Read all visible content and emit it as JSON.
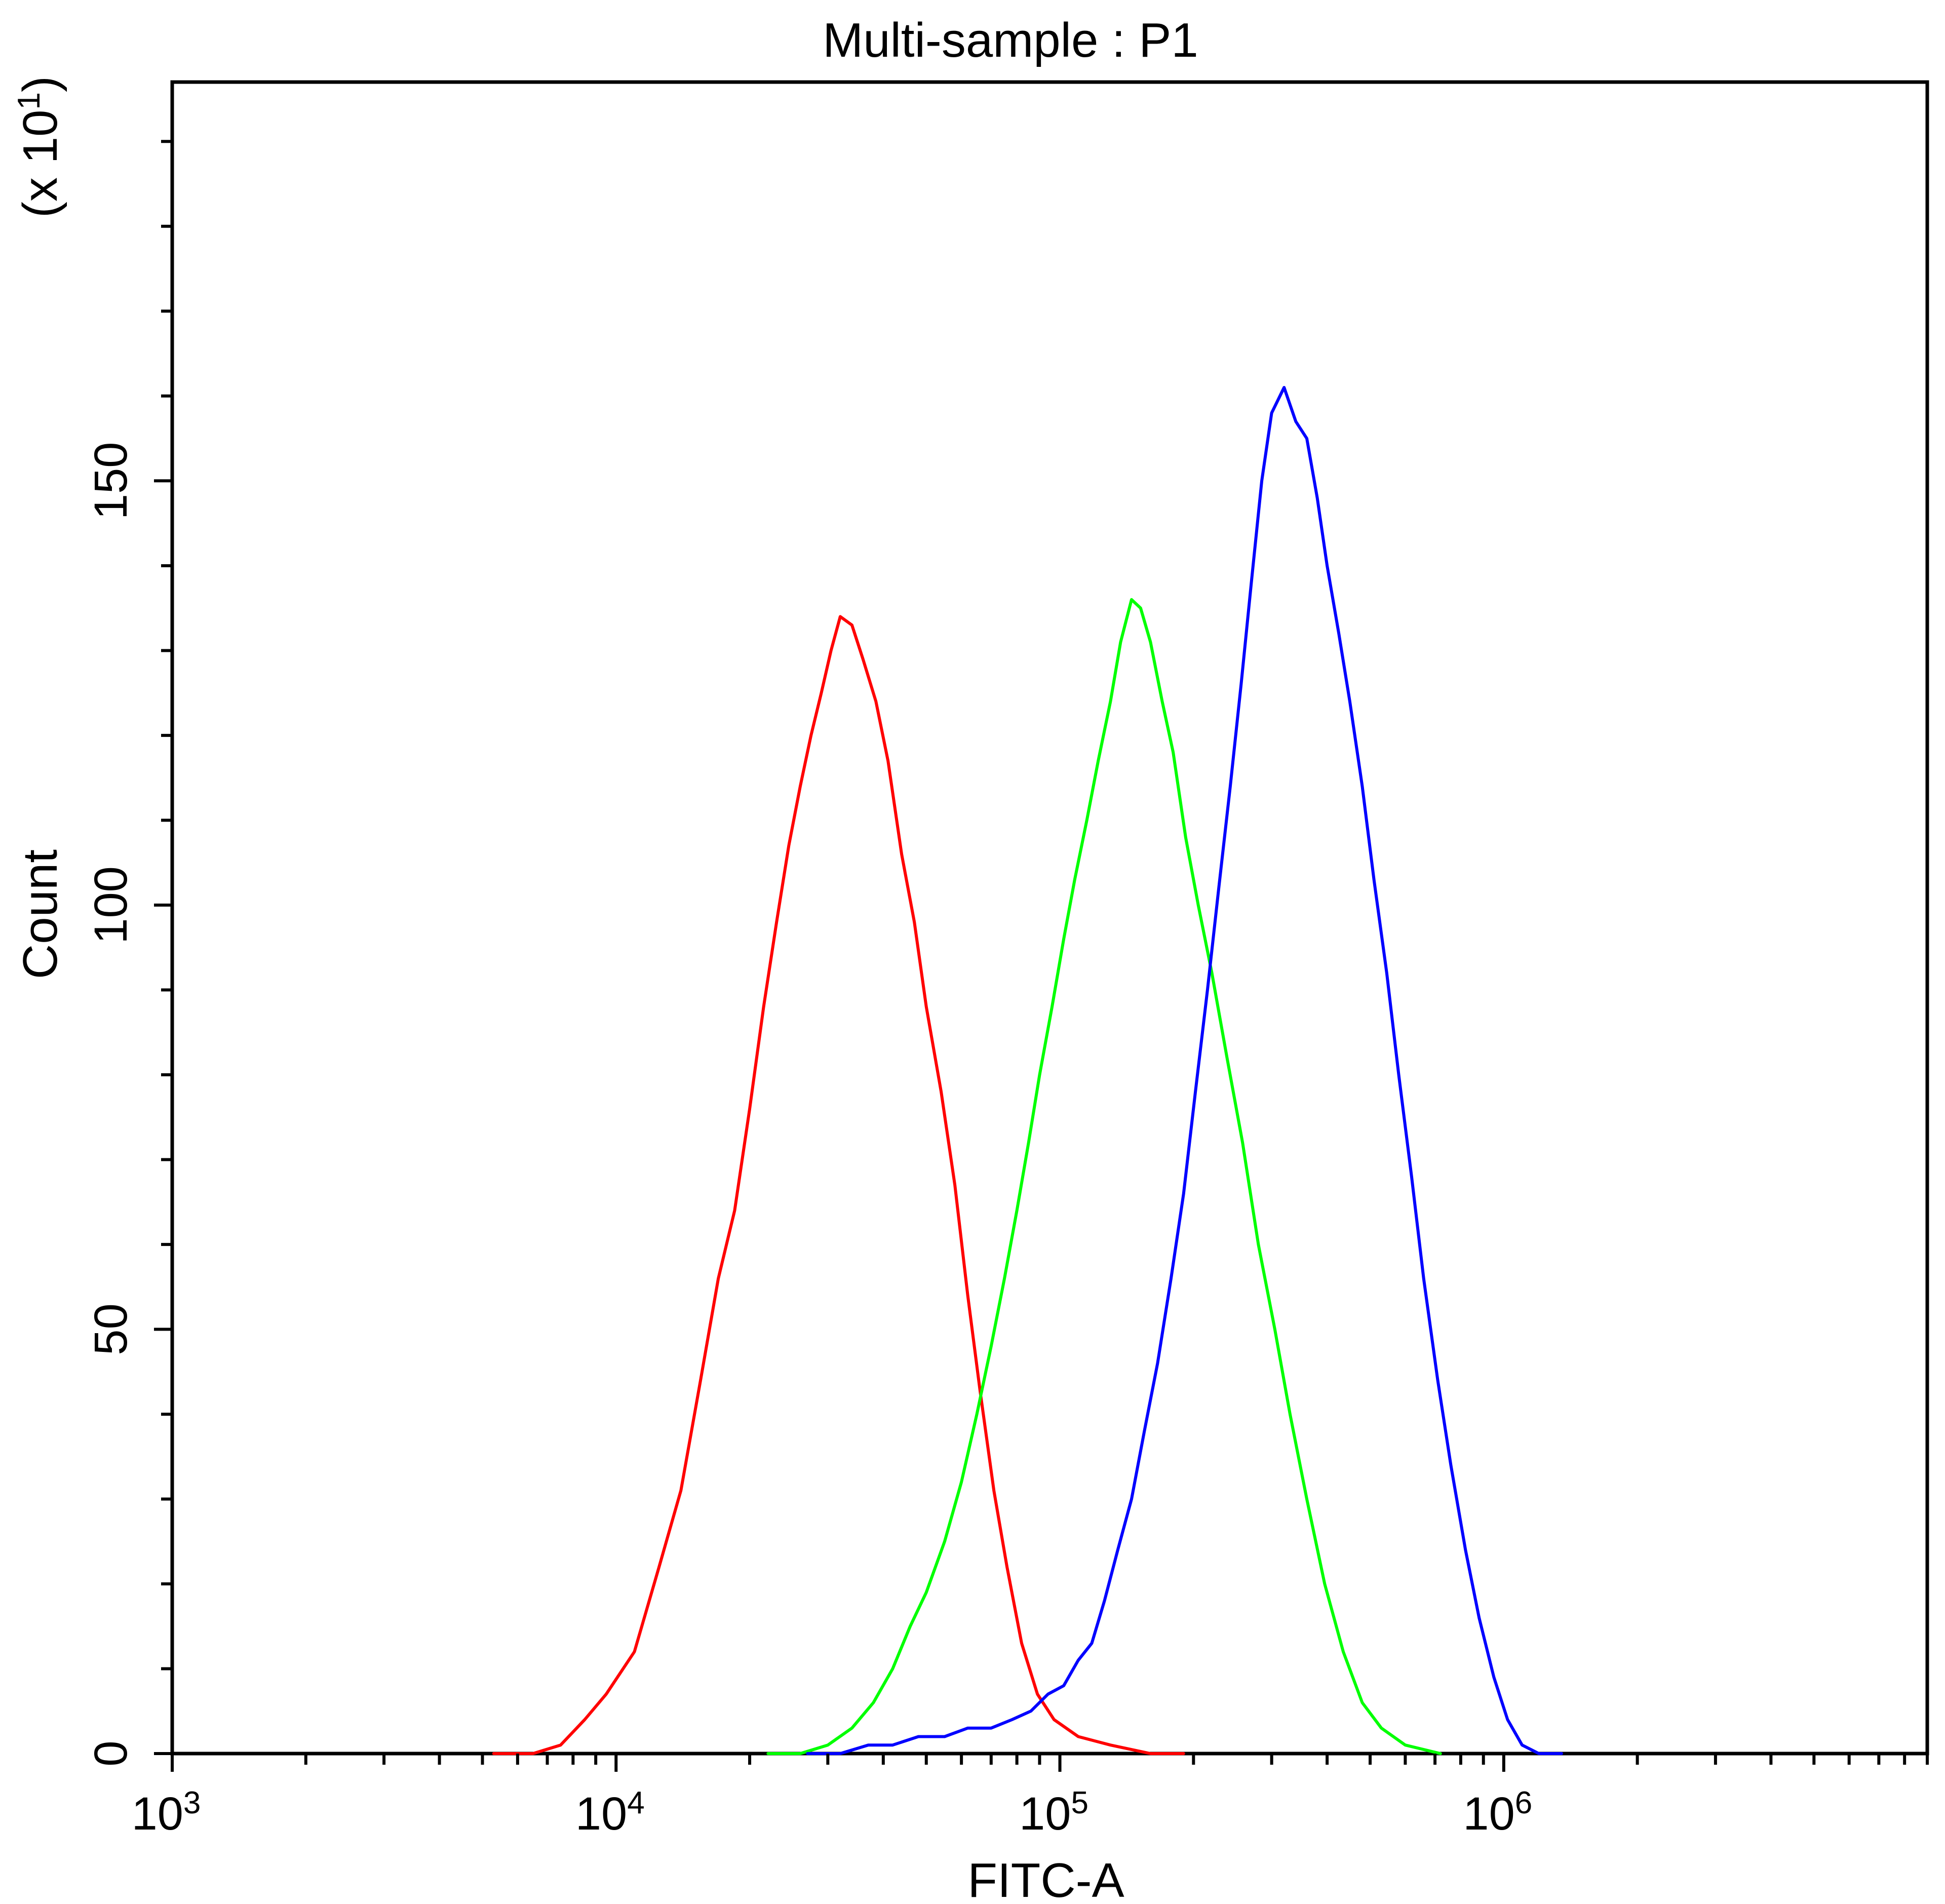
{
  "chart_data": {
    "type": "line",
    "title": "Multi-sample : P1",
    "xlabel": "FITC-A",
    "ylabel": "Count",
    "y_multiplier_label": "(x 10",
    "y_multiplier_exp": "1",
    "x_scale": "log",
    "xlim": [
      1000,
      9000000
    ],
    "ylim": [
      0,
      197
    ],
    "x_ticks": [
      {
        "base": "10",
        "exp": "3",
        "value": 1000
      },
      {
        "base": "10",
        "exp": "4",
        "value": 10000
      },
      {
        "base": "10",
        "exp": "5",
        "value": 100000
      },
      {
        "base": "10",
        "exp": "6",
        "value": 1000000
      }
    ],
    "y_ticks": [
      {
        "label": "0",
        "value": 0
      },
      {
        "label": "50",
        "value": 50
      },
      {
        "label": "100",
        "value": 100
      },
      {
        "label": "150",
        "value": 150
      }
    ],
    "grid": false,
    "legend": "none",
    "series": [
      {
        "color": "#ff0000",
        "points": [
          [
            5300,
            0
          ],
          [
            6500,
            0
          ],
          [
            7500,
            1
          ],
          [
            8500,
            4
          ],
          [
            9500,
            7
          ],
          [
            11000,
            12
          ],
          [
            12500,
            22
          ],
          [
            14000,
            31
          ],
          [
            15500,
            44
          ],
          [
            17000,
            56
          ],
          [
            18500,
            64
          ],
          [
            20000,
            76
          ],
          [
            21500,
            88
          ],
          [
            23000,
            98
          ],
          [
            24500,
            107
          ],
          [
            26000,
            114
          ],
          [
            27500,
            120
          ],
          [
            29000,
            125
          ],
          [
            30500,
            130
          ],
          [
            32000,
            134
          ],
          [
            34000,
            133
          ],
          [
            36000,
            129
          ],
          [
            38500,
            124
          ],
          [
            41000,
            117
          ],
          [
            44000,
            106
          ],
          [
            47000,
            98
          ],
          [
            50000,
            88
          ],
          [
            54000,
            78
          ],
          [
            58000,
            67
          ],
          [
            62000,
            54
          ],
          [
            66000,
            43
          ],
          [
            71000,
            31
          ],
          [
            76000,
            22
          ],
          [
            82000,
            13
          ],
          [
            89000,
            7
          ],
          [
            97000,
            4
          ],
          [
            110000,
            2
          ],
          [
            130000,
            1
          ],
          [
            160000,
            0
          ],
          [
            190000,
            0
          ]
        ]
      },
      {
        "color": "#00ff00",
        "points": [
          [
            22000,
            0
          ],
          [
            26000,
            0
          ],
          [
            30000,
            1
          ],
          [
            34000,
            3
          ],
          [
            38000,
            6
          ],
          [
            42000,
            10
          ],
          [
            46000,
            15
          ],
          [
            50000,
            19
          ],
          [
            55000,
            25
          ],
          [
            60000,
            32
          ],
          [
            65000,
            40
          ],
          [
            70000,
            48
          ],
          [
            75000,
            56
          ],
          [
            80000,
            64
          ],
          [
            85000,
            72
          ],
          [
            90000,
            80
          ],
          [
            96000,
            88
          ],
          [
            102000,
            96
          ],
          [
            108000,
            103
          ],
          [
            115000,
            110
          ],
          [
            122000,
            117
          ],
          [
            130000,
            124
          ],
          [
            137000,
            131
          ],
          [
            145000,
            136
          ],
          [
            152000,
            135
          ],
          [
            160000,
            131
          ],
          [
            170000,
            124
          ],
          [
            180000,
            118
          ],
          [
            192000,
            108
          ],
          [
            205000,
            100
          ],
          [
            220000,
            92
          ],
          [
            238000,
            82
          ],
          [
            258000,
            72
          ],
          [
            280000,
            60
          ],
          [
            305000,
            50
          ],
          [
            330000,
            40
          ],
          [
            360000,
            30
          ],
          [
            395000,
            20
          ],
          [
            435000,
            12
          ],
          [
            480000,
            6
          ],
          [
            530000,
            3
          ],
          [
            600000,
            1
          ],
          [
            720000,
            0
          ]
        ]
      },
      {
        "color": "#0000ff",
        "points": [
          [
            27000,
            0
          ],
          [
            32000,
            0
          ],
          [
            37000,
            1
          ],
          [
            42000,
            1
          ],
          [
            48000,
            2
          ],
          [
            55000,
            2
          ],
          [
            62000,
            3
          ],
          [
            70000,
            3
          ],
          [
            78000,
            4
          ],
          [
            86000,
            5
          ],
          [
            94000,
            7
          ],
          [
            102000,
            8
          ],
          [
            110000,
            11
          ],
          [
            118000,
            13
          ],
          [
            126000,
            18
          ],
          [
            135000,
            24
          ],
          [
            145000,
            30
          ],
          [
            155000,
            38
          ],
          [
            166000,
            46
          ],
          [
            178000,
            56
          ],
          [
            190000,
            66
          ],
          [
            202000,
            78
          ],
          [
            215000,
            90
          ],
          [
            228000,
            102
          ],
          [
            242000,
            114
          ],
          [
            256000,
            126
          ],
          [
            270000,
            138
          ],
          [
            285000,
            150
          ],
          [
            300000,
            158
          ],
          [
            320000,
            161
          ],
          [
            340000,
            157
          ],
          [
            360000,
            155
          ],
          [
            380000,
            148
          ],
          [
            400000,
            140
          ],
          [
            425000,
            132
          ],
          [
            450000,
            124
          ],
          [
            480000,
            114
          ],
          [
            510000,
            103
          ],
          [
            545000,
            92
          ],
          [
            580000,
            80
          ],
          [
            620000,
            68
          ],
          [
            660000,
            56
          ],
          [
            710000,
            44
          ],
          [
            760000,
            34
          ],
          [
            820000,
            24
          ],
          [
            880000,
            16
          ],
          [
            950000,
            9
          ],
          [
            1020000,
            4
          ],
          [
            1100000,
            1
          ],
          [
            1200000,
            0
          ],
          [
            1350000,
            0
          ]
        ]
      }
    ]
  }
}
